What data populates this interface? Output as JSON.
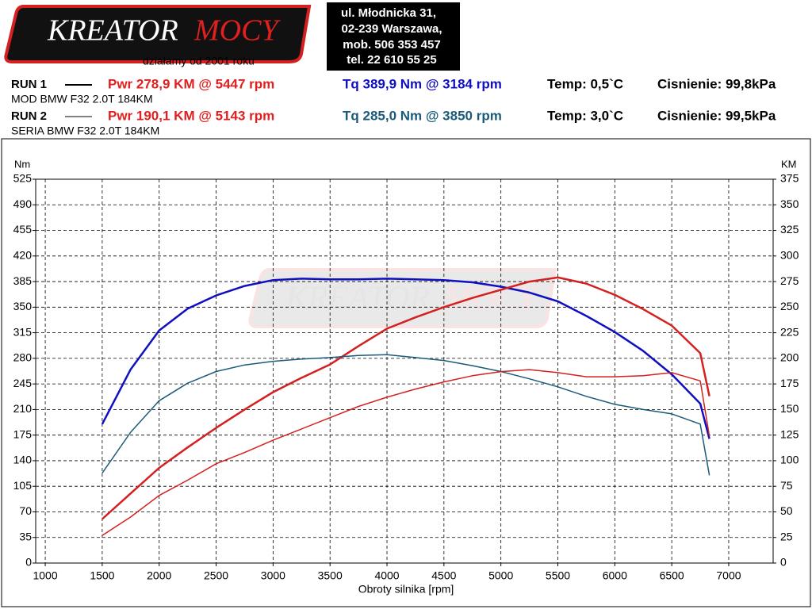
{
  "header": {
    "logo": [
      "KREATOR",
      "MOCY"
    ],
    "slogan": "działamy od 2001 roku",
    "address": [
      "ul. Młodnicka 31,",
      "02-239  Warszawa,",
      "mob.  506 353 457",
      "tel.  22 610 55 25"
    ]
  },
  "chart_data": {
    "type": "line",
    "runs": [
      {
        "label": "RUN 1",
        "power": "Pwr  278,9 KM @ 5447 rpm",
        "torque": "Tq 389,9 Nm @ 3184 rpm",
        "temp": "Temp: 0,5`C",
        "pressure": "Cisnienie: 99,8kPa",
        "car": "MOD BMW F32 2.0T 184KM"
      },
      {
        "label": "RUN 2",
        "power": "Pwr  190,1 KM @ 5143 rpm",
        "torque": "Tq 285,0 Nm @ 3850 rpm",
        "temp": "Temp: 3,0`C",
        "pressure": "Cisnienie: 99,5kPa",
        "car": "SERIA BMW F32 2.0T 184KM"
      }
    ],
    "y_label": "Nm",
    "y2_label": "KM",
    "x_label": "Obroty silnika [rpm]",
    "x": [
      1500,
      1750,
      2000,
      2250,
      2500,
      2750,
      3000,
      3250,
      3500,
      3750,
      4000,
      4250,
      4500,
      4750,
      5000,
      5250,
      5500,
      5750,
      6000,
      6250,
      6500,
      6750,
      6830
    ],
    "series": [
      {
        "color": "#1010c0",
        "width": 2.5,
        "values": [
          190,
          265,
          318,
          348,
          366,
          379,
          387,
          389,
          388,
          388,
          389,
          388,
          387,
          384,
          378,
          370,
          358,
          338,
          316,
          290,
          258,
          218,
          170
        ]
      },
      {
        "color": "#d42020",
        "width": 2.5,
        "axis": "y2",
        "values": [
          43,
          68,
          93,
          113,
          132,
          150,
          167,
          181,
          194,
          212,
          229,
          240,
          250,
          259,
          267,
          275,
          279,
          273,
          262,
          248,
          232,
          205,
          163
        ]
      },
      {
        "color": "#1a5b7a",
        "width": 1.5,
        "values": [
          123,
          179,
          222,
          246,
          262,
          271,
          276,
          279,
          281,
          284,
          285,
          281,
          277,
          270,
          262,
          252,
          241,
          228,
          217,
          210,
          204,
          190,
          120
        ]
      },
      {
        "color": "#d42020",
        "width": 1.5,
        "axis": "y2",
        "values": [
          27,
          45,
          66,
          81,
          97,
          108,
          120,
          131,
          142,
          153,
          162,
          170,
          177,
          183,
          187,
          189,
          186,
          182,
          182,
          183,
          186,
          178,
          124
        ]
      }
    ],
    "xlim": [
      916,
      7390
    ],
    "xticks": [
      1000,
      1500,
      2000,
      2500,
      3000,
      3500,
      4000,
      4500,
      5000,
      5500,
      6000,
      6500,
      7000
    ],
    "ylim": [
      0,
      525
    ],
    "yticks": [
      0,
      35,
      70,
      105,
      140,
      175,
      210,
      245,
      280,
      315,
      350,
      385,
      420,
      455,
      490,
      525
    ],
    "y2lim": [
      0,
      375
    ],
    "y2ticks": [
      0,
      25,
      50,
      75,
      100,
      125,
      150,
      175,
      200,
      225,
      250,
      275,
      300,
      325,
      350,
      375
    ],
    "grid": true
  }
}
